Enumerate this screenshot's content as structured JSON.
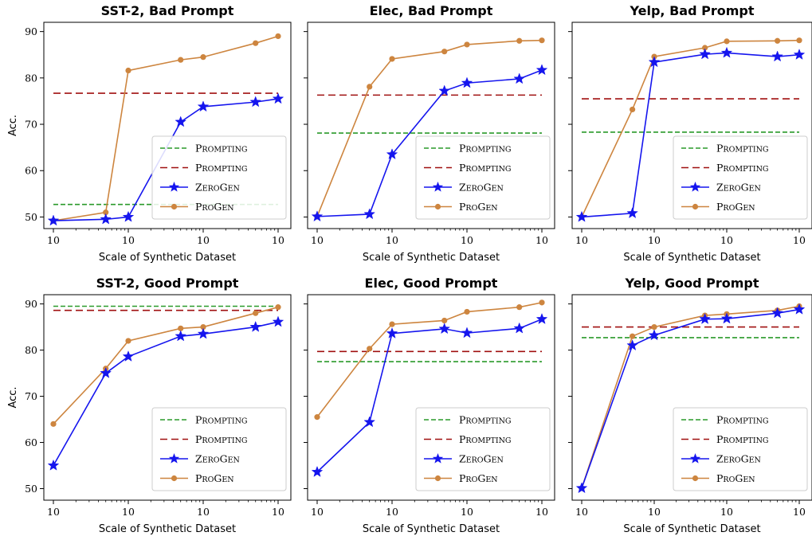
{
  "colors": {
    "prompting_green": "#2a9a2a",
    "prompting_red": "#a01010",
    "zerogen": "#1515ee",
    "progen": "#cd853f"
  },
  "legend_labels": [
    "Prompting",
    "Prompting",
    "ZeroGen",
    "ProGen"
  ],
  "chart_data": [
    {
      "type": "line",
      "title": "SST-2, Bad Prompt",
      "xlabel": "Scale of Synthetic Dataset",
      "ylabel": "Acc.",
      "xticks": [
        "10",
        "10",
        "10",
        "10"
      ],
      "yticks": [
        50,
        60,
        70,
        80,
        90
      ],
      "ylim": [
        47.5,
        92
      ],
      "legend": "lower-right",
      "x_points": [
        1,
        5,
        10,
        50,
        100,
        500,
        1000
      ],
      "series": [
        {
          "name": "Prompting",
          "style": "dashed-green",
          "value": 52.7
        },
        {
          "name": "Prompting",
          "style": "dashed-red",
          "value": 76.7
        },
        {
          "name": "ZeroGen",
          "marker": "star",
          "values": [
            49.2,
            49.5,
            50.0,
            70.5,
            73.8,
            74.8,
            75.5
          ]
        },
        {
          "name": "ProGen",
          "marker": "circle",
          "values": [
            49.2,
            51.0,
            81.6,
            83.9,
            84.5,
            87.5,
            89.0
          ]
        }
      ]
    },
    {
      "type": "line",
      "title": "Elec, Bad Prompt",
      "xlabel": "Scale of Synthetic Dataset",
      "ylabel": "",
      "xticks": [
        "10",
        "10",
        "10",
        "10"
      ],
      "yticks": [],
      "ylim": [
        47.5,
        92
      ],
      "legend": "lower-right",
      "x_points": [
        1,
        5,
        10,
        50,
        100,
        500,
        1000
      ],
      "series": [
        {
          "name": "Prompting",
          "style": "dashed-green",
          "value": 68.1
        },
        {
          "name": "Prompting",
          "style": "dashed-red",
          "value": 76.3
        },
        {
          "name": "ZeroGen",
          "marker": "star",
          "values": [
            50.1,
            50.6,
            63.5,
            77.2,
            78.9,
            79.8,
            81.7
          ]
        },
        {
          "name": "ProGen",
          "marker": "circle",
          "values": [
            50.1,
            78.1,
            84.1,
            85.7,
            87.2,
            88.0,
            88.1
          ]
        }
      ]
    },
    {
      "type": "line",
      "title": "Yelp, Bad Prompt",
      "xlabel": "Scale of Synthetic Dataset",
      "ylabel": "",
      "xticks": [
        "10",
        "10",
        "10",
        "10"
      ],
      "yticks": [],
      "ylim": [
        47.5,
        92
      ],
      "legend": "lower-right",
      "x_points": [
        1,
        5,
        10,
        50,
        100,
        500,
        1000
      ],
      "series": [
        {
          "name": "Prompting",
          "style": "dashed-green",
          "value": 68.3
        },
        {
          "name": "Prompting",
          "style": "dashed-red",
          "value": 75.5
        },
        {
          "name": "ZeroGen",
          "marker": "star",
          "values": [
            50.0,
            50.8,
            83.4,
            85.1,
            85.4,
            84.6,
            85.0
          ]
        },
        {
          "name": "ProGen",
          "marker": "circle",
          "values": [
            50.0,
            73.2,
            84.6,
            86.5,
            87.9,
            88.0,
            88.1
          ]
        }
      ]
    },
    {
      "type": "line",
      "title": "SST-2, Good Prompt",
      "xlabel": "Scale of Synthetic Dataset",
      "ylabel": "Acc.",
      "xticks": [
        "10",
        "10",
        "10",
        "10"
      ],
      "yticks": [
        50,
        60,
        70,
        80,
        90
      ],
      "ylim": [
        47.5,
        92
      ],
      "legend": "lower-right",
      "x_points": [
        1,
        5,
        10,
        50,
        100,
        500,
        1000
      ],
      "series": [
        {
          "name": "Prompting",
          "style": "dashed-green",
          "value": 89.5
        },
        {
          "name": "Prompting",
          "style": "dashed-red",
          "value": 88.6
        },
        {
          "name": "ZeroGen",
          "marker": "star",
          "values": [
            55.0,
            75.0,
            78.6,
            83.0,
            83.5,
            85.0,
            86.1
          ]
        },
        {
          "name": "ProGen",
          "marker": "circle",
          "values": [
            64.0,
            76.0,
            82.0,
            84.7,
            85.0,
            88.0,
            89.3
          ]
        }
      ]
    },
    {
      "type": "line",
      "title": "Elec, Good Prompt",
      "xlabel": "Scale of Synthetic Dataset",
      "ylabel": "",
      "xticks": [
        "10",
        "10",
        "10",
        "10"
      ],
      "yticks": [],
      "ylim": [
        47.5,
        92
      ],
      "legend": "lower-right",
      "x_points": [
        1,
        5,
        10,
        50,
        100,
        500,
        1000
      ],
      "series": [
        {
          "name": "Prompting",
          "style": "dashed-green",
          "value": 77.5
        },
        {
          "name": "Prompting",
          "style": "dashed-red",
          "value": 79.7
        },
        {
          "name": "ZeroGen",
          "marker": "star",
          "values": [
            53.6,
            64.4,
            83.6,
            84.6,
            83.7,
            84.7,
            86.7
          ]
        },
        {
          "name": "ProGen",
          "marker": "circle",
          "values": [
            65.5,
            80.3,
            85.6,
            86.4,
            88.3,
            89.3,
            90.3
          ]
        }
      ]
    },
    {
      "type": "line",
      "title": "Yelp, Good Prompt",
      "xlabel": "Scale of Synthetic Dataset",
      "ylabel": "",
      "xticks": [
        "10",
        "10",
        "10",
        "10"
      ],
      "yticks": [],
      "ylim": [
        47.5,
        92
      ],
      "legend": "lower-right",
      "x_points": [
        1,
        5,
        10,
        50,
        100,
        500,
        1000
      ],
      "series": [
        {
          "name": "Prompting",
          "style": "dashed-green",
          "value": 82.7
        },
        {
          "name": "Prompting",
          "style": "dashed-red",
          "value": 85.0
        },
        {
          "name": "ZeroGen",
          "marker": "star",
          "values": [
            50.1,
            81.0,
            83.2,
            86.7,
            86.8,
            88.0,
            88.8
          ]
        },
        {
          "name": "ProGen",
          "marker": "circle",
          "values": [
            50.1,
            83.0,
            85.0,
            87.5,
            87.8,
            88.6,
            89.5
          ]
        }
      ]
    }
  ]
}
